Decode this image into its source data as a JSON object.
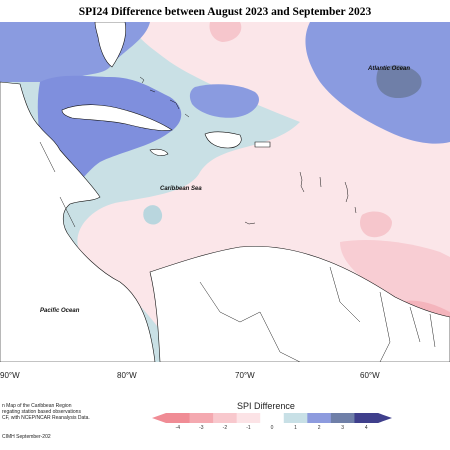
{
  "title": "SPI24 Difference between August 2023 and September 2023",
  "labels": {
    "atlantic": "Atlantic Ocean",
    "caribbean": "Caribbean Sea",
    "pacific": "Pacific Ocean"
  },
  "lon_axis": [
    "90°W",
    "80°W",
    "70°W",
    "60°W"
  ],
  "footnote": {
    "line1": "n Map of the Caribbean Region",
    "line2": "regating station based observations",
    "line3": "CF, with NCEP/NCAR Reanalysis Data.",
    "credit": "CIMH September-202"
  },
  "legend": {
    "title": "SPI Difference",
    "ticks": [
      "-4",
      "-3",
      "-2",
      "-1",
      "0",
      "1",
      "2",
      "3",
      "4"
    ],
    "colors": [
      "#f08c95",
      "#f4a9b0",
      "#f8c8cd",
      "#fce3e6",
      "#ffffff",
      "#c8e0e6",
      "#8d9bde",
      "#6f7fa8",
      "#3f3f8c"
    ]
  }
}
